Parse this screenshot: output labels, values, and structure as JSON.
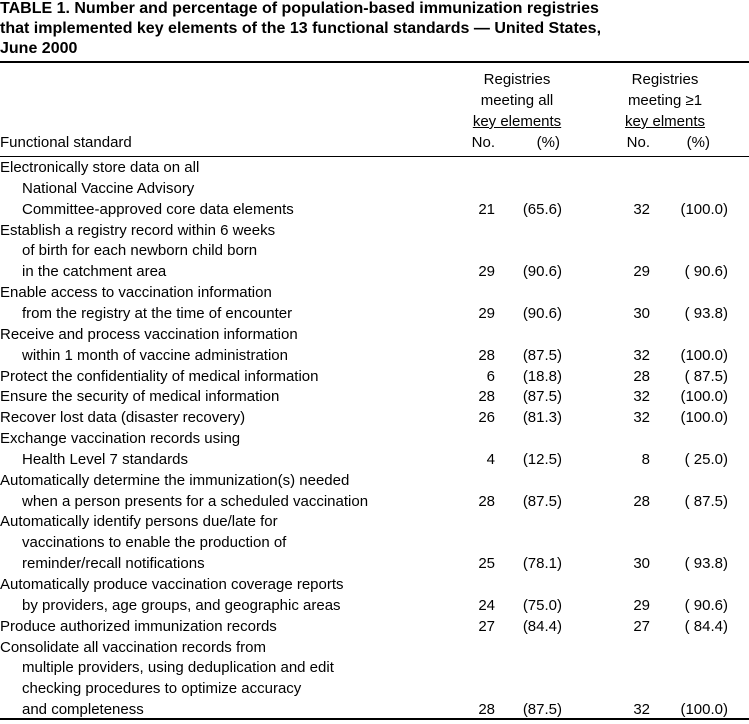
{
  "title": [
    "TABLE 1. Number and percentage of population-based immunization registries",
    "that implemented key elements of the 13 functional standards — United States,",
    "June 2000"
  ],
  "header": {
    "first_column": "Functional standard",
    "groups": [
      {
        "lines": [
          "Registries",
          "meeting all",
          "key elements"
        ],
        "no": "No.",
        "pct": "(%)"
      },
      {
        "lines": [
          "Registries",
          "meeting ≥1",
          "key elments"
        ],
        "no": "No.",
        "pct": "(%)"
      }
    ]
  },
  "rows": [
    {
      "label": [
        "Electronically store data on all",
        "National Vaccine Advisory",
        "Committee-approved core data elements"
      ],
      "cells": [
        "21",
        "(65.6)",
        "32",
        "(100.0)"
      ]
    },
    {
      "label": [
        "Establish a registry record within 6 weeks",
        "of birth for each newborn child born",
        "in the catchment area"
      ],
      "cells": [
        "29",
        "(90.6)",
        "29",
        "( 90.6)"
      ]
    },
    {
      "label": [
        "Enable access to vaccination information",
        "from the registry at the time of encounter"
      ],
      "cells": [
        "29",
        "(90.6)",
        "30",
        "( 93.8)"
      ]
    },
    {
      "label": [
        "Receive and process vaccination information",
        "within 1 month of vaccine administration"
      ],
      "cells": [
        "28",
        "(87.5)",
        "32",
        "(100.0)"
      ]
    },
    {
      "label": [
        "Protect the confidentiality of medical information"
      ],
      "cells": [
        "6",
        "(18.8)",
        "28",
        "( 87.5)"
      ]
    },
    {
      "label": [
        "Ensure the security of medical information"
      ],
      "cells": [
        "28",
        "(87.5)",
        "32",
        "(100.0)"
      ]
    },
    {
      "label": [
        "Recover lost data (disaster recovery)"
      ],
      "cells": [
        "26",
        "(81.3)",
        "32",
        "(100.0)"
      ]
    },
    {
      "label": [
        "Exchange vaccination records using",
        "Health Level 7 standards"
      ],
      "cells": [
        "4",
        "(12.5)",
        "8",
        "( 25.0)"
      ]
    },
    {
      "label": [
        "Automatically determine the immunization(s) needed",
        "when a person presents for a scheduled vaccination"
      ],
      "cells": [
        "28",
        "(87.5)",
        "28",
        "( 87.5)"
      ]
    },
    {
      "label": [
        "Automatically identify persons due/late for",
        "vaccinations to enable the production of",
        "reminder/recall notifications"
      ],
      "cells": [
        "25",
        "(78.1)",
        "30",
        "( 93.8)"
      ]
    },
    {
      "label": [
        "Automatically produce vaccination coverage reports",
        "by providers, age groups, and geographic areas"
      ],
      "cells": [
        "24",
        "(75.0)",
        "29",
        "( 90.6)"
      ]
    },
    {
      "label": [
        "Produce authorized immunization records"
      ],
      "cells": [
        "27",
        "(84.4)",
        "27",
        "( 84.4)"
      ]
    },
    {
      "label": [
        "Consolidate all vaccination records from",
        "multiple providers, using deduplication and edit",
        "checking procedures to optimize accuracy",
        "and completeness"
      ],
      "cells": [
        "28",
        "(87.5)",
        "32",
        "(100.0)"
      ]
    }
  ]
}
